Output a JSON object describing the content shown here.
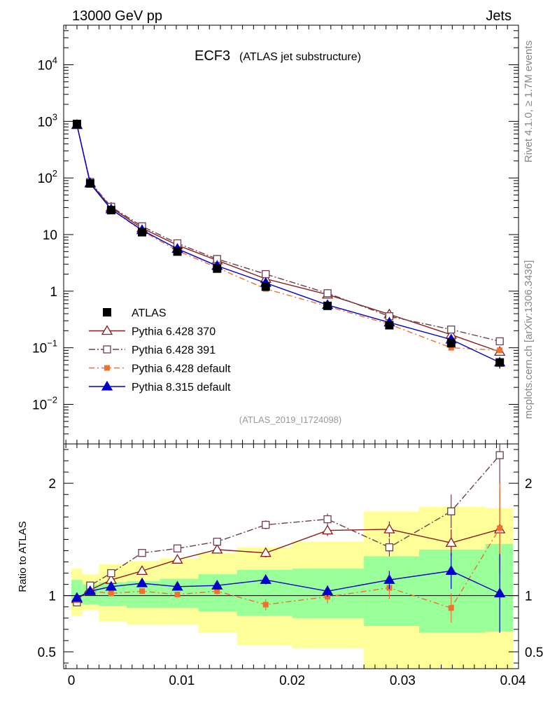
{
  "header": {
    "left": "13000 GeV pp",
    "right": "Jets"
  },
  "title": {
    "main": "ECF3",
    "sub": "(ATLAS jet substructure)"
  },
  "side_labels": {
    "top": "Rivet 4.1.0, ≥ 1.7M events",
    "bottom": "mcplots.cern.ch [arXiv:1306.3436]"
  },
  "analysis_id": "(ATLAS_2019_I1724098)",
  "ratio_ylabel": "Ratio to ATLAS",
  "chart_data": {
    "type": "line",
    "x": [
      0.0005,
      0.0017,
      0.0036,
      0.0064,
      0.0096,
      0.0132,
      0.0176,
      0.0232,
      0.0288,
      0.0344,
      0.0388
    ],
    "main": {
      "yscale": "log",
      "ylim": [
        0.002,
        50000
      ],
      "ytick_labels": [
        {
          "v": 0.01,
          "base": "10",
          "exp": "−2"
        },
        {
          "v": 0.1,
          "base": "10",
          "exp": "−1"
        },
        {
          "v": 1,
          "base": "1",
          "exp": ""
        },
        {
          "v": 10,
          "base": "10",
          "exp": ""
        },
        {
          "v": 100,
          "base": "10",
          "exp": "2"
        },
        {
          "v": 1000,
          "base": "10",
          "exp": "3"
        },
        {
          "v": 10000,
          "base": "10",
          "exp": "4"
        }
      ]
    },
    "ratio": {
      "ylim": [
        0.35,
        2.35
      ],
      "ticks": [
        0.5,
        1,
        2
      ],
      "tick_labels": [
        "0.5",
        "1",
        "2"
      ],
      "ylabel": "Ratio to ATLAS"
    },
    "xlim": [
      -0.0007,
      0.0405
    ],
    "xticks": [
      0,
      0.01,
      0.02,
      0.03,
      0.04
    ],
    "xtick_labels": [
      "0",
      "0.01",
      "0.02",
      "0.03",
      "0.04"
    ],
    "bin_edges": [
      0.0,
      0.001,
      0.0025,
      0.005,
      0.008,
      0.0115,
      0.015,
      0.02,
      0.0265,
      0.0315,
      0.0375,
      0.04
    ],
    "band_yellow": [
      [
        0.82,
        1.24
      ],
      [
        0.87,
        1.19
      ],
      [
        0.77,
        1.28
      ],
      [
        0.74,
        1.31
      ],
      [
        0.74,
        1.33
      ],
      [
        0.67,
        1.38
      ],
      [
        0.56,
        1.43
      ],
      [
        0.53,
        1.48
      ],
      [
        0.3,
        1.75
      ],
      [
        0.3,
        1.79
      ],
      [
        0.3,
        1.78
      ]
    ],
    "band_green": [
      [
        0.93,
        1.14
      ],
      [
        0.92,
        1.1
      ],
      [
        0.91,
        1.12
      ],
      [
        0.89,
        1.13
      ],
      [
        0.89,
        1.15
      ],
      [
        0.86,
        1.19
      ],
      [
        0.82,
        1.23
      ],
      [
        0.8,
        1.24
      ],
      [
        0.73,
        1.35
      ],
      [
        0.67,
        1.41
      ],
      [
        0.68,
        1.46
      ]
    ],
    "data": {
      "name": "ATLAS",
      "color": "#000000",
      "values": [
        900,
        80,
        27,
        11,
        5.0,
        2.5,
        1.2,
        0.55,
        0.25,
        0.12,
        0.055
      ],
      "errors": [
        45,
        4,
        1.4,
        0.6,
        0.3,
        0.15,
        0.08,
        0.04,
        0.02,
        0.015,
        0.012
      ]
    },
    "series": [
      {
        "name": "Pythia 6.428 370",
        "color": "#8b1a1a",
        "dash": "",
        "marker": "triangle-open",
        "values": [
          870,
          82,
          30,
          13,
          6.5,
          3.5,
          1.65,
          0.87,
          0.39,
          0.17,
          0.085
        ],
        "ratio": [
          0.97,
          1.05,
          1.14,
          1.22,
          1.32,
          1.41,
          1.38,
          1.58,
          1.59,
          1.47,
          1.59
        ],
        "ratio_err": [
          0,
          0,
          0,
          0,
          0,
          0.03,
          0.04,
          0.05,
          0.07,
          0.12,
          0.35
        ]
      },
      {
        "name": "Pythia 6.428 391",
        "color": "#6b3f4f",
        "dash": "9,3,2,3",
        "marker": "square-open",
        "values": [
          880,
          85,
          31,
          14,
          7.0,
          3.7,
          2.0,
          0.92,
          0.36,
          0.21,
          0.13
        ],
        "ratio": [
          0.94,
          1.09,
          1.2,
          1.38,
          1.42,
          1.48,
          1.63,
          1.68,
          1.43,
          1.75,
          2.25
        ],
        "ratio_err": [
          0,
          0,
          0,
          0.02,
          0.02,
          0.03,
          0.04,
          0.05,
          0.08,
          0.15,
          0.4
        ]
      },
      {
        "name": "Pythia 6.428 default",
        "color": "#f07030",
        "dash": "8,4,2,4",
        "marker": "square-filled",
        "values": [
          880,
          82,
          28,
          11.6,
          5.2,
          2.6,
          1.1,
          0.54,
          0.26,
          0.1,
          0.09
        ],
        "ratio": [
          0.96,
          1.04,
          1.02,
          1.04,
          1.01,
          1.04,
          0.92,
          0.99,
          1.07,
          0.89,
          1.6
        ],
        "ratio_err": [
          0,
          0.01,
          0.01,
          0.02,
          0.02,
          0.03,
          0.05,
          0.06,
          0.1,
          0.13,
          0.4
        ]
      },
      {
        "name": "Pythia 8.315 default",
        "color": "#0000cc",
        "dash": "",
        "marker": "triangle-filled",
        "values": [
          860,
          80,
          28,
          12,
          5.6,
          2.8,
          1.4,
          0.57,
          0.28,
          0.14,
          0.055
        ],
        "ratio": [
          0.98,
          1.04,
          1.08,
          1.11,
          1.08,
          1.09,
          1.14,
          1.04,
          1.14,
          1.22,
          1.02
        ],
        "ratio_err": [
          0,
          0.01,
          0.02,
          0.02,
          0.02,
          0.03,
          0.04,
          0.05,
          0.08,
          0.16,
          0.35
        ]
      }
    ]
  }
}
